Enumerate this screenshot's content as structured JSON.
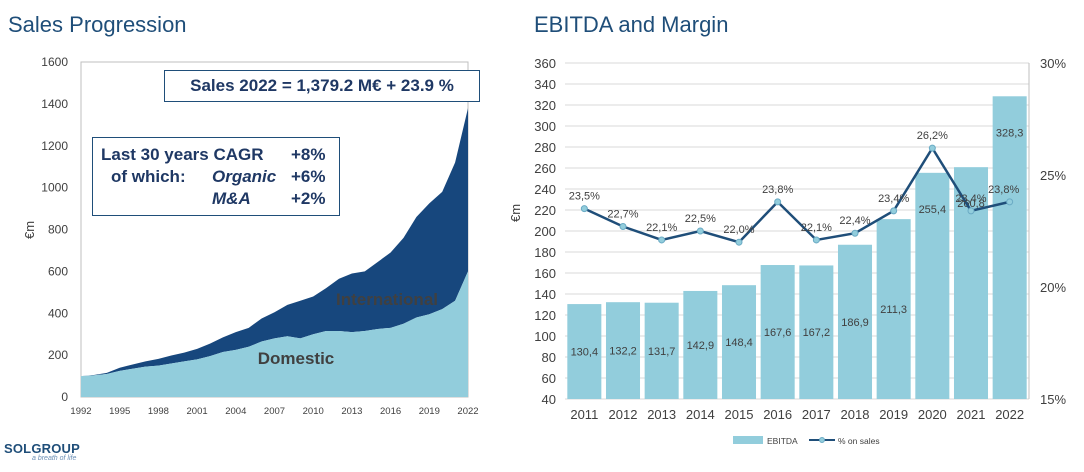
{
  "titles": {
    "left": "Sales Progression",
    "right": "EBITDA and Margin"
  },
  "sales_box": "Sales 2022 = 1,379.2 M€  + 23.9 %",
  "cagr_box": {
    "line1_label": "Last 30 years CAGR",
    "line1_value": "+8%",
    "line2_label": "of which:",
    "line2_sub": "Organic",
    "line2_value": "+6%",
    "line3_sub": "M&A",
    "line3_value": "+2%"
  },
  "area_labels": {
    "international": "International",
    "domestic": "Domestic"
  },
  "logo": {
    "brand": "SOLGROUP",
    "tagline": "a breath of life"
  },
  "colors": {
    "light": "#92cddc",
    "dark": "#17477d",
    "line": "#1f4e79",
    "text": "#1f3864"
  },
  "chart_data": [
    {
      "type": "area",
      "title": "Sales Progression",
      "ylabel": "€m",
      "ylim": [
        0,
        1600
      ],
      "yticks": [
        0,
        200,
        400,
        600,
        800,
        1000,
        1200,
        1400,
        1600
      ],
      "xticklabels": [
        "1992",
        "1995",
        "1998",
        "2001",
        "2004",
        "2007",
        "2010",
        "2013",
        "2016",
        "2019",
        "2022"
      ],
      "x": [
        1992,
        1993,
        1994,
        1995,
        1996,
        1997,
        1998,
        1999,
        2000,
        2001,
        2002,
        2003,
        2004,
        2005,
        2006,
        2007,
        2008,
        2009,
        2010,
        2011,
        2012,
        2013,
        2014,
        2015,
        2016,
        2017,
        2018,
        2019,
        2020,
        2021,
        2022
      ],
      "stacked": true,
      "series": [
        {
          "name": "Domestic",
          "values": [
            100,
            103,
            110,
            125,
            135,
            145,
            150,
            160,
            170,
            180,
            195,
            215,
            225,
            240,
            265,
            280,
            290,
            280,
            300,
            315,
            315,
            310,
            315,
            325,
            330,
            350,
            380,
            395,
            420,
            460,
            600
          ]
        },
        {
          "name": "International",
          "values": [
            0,
            2,
            5,
            15,
            20,
            25,
            32,
            38,
            42,
            50,
            60,
            70,
            85,
            90,
            110,
            125,
            150,
            180,
            180,
            205,
            250,
            280,
            285,
            320,
            360,
            410,
            480,
            530,
            560,
            660,
            780
          ]
        }
      ]
    },
    {
      "type": "bar",
      "title": "EBITDA and Margin",
      "ylabel": "€m",
      "ylim": [
        40,
        360
      ],
      "yticks": [
        40,
        60,
        80,
        100,
        120,
        140,
        160,
        180,
        200,
        220,
        240,
        260,
        280,
        300,
        320,
        340,
        360
      ],
      "y2lim": [
        15,
        30
      ],
      "y2ticks": [
        "15%",
        "20%",
        "25%",
        "30%"
      ],
      "categories": [
        "2011",
        "2012",
        "2013",
        "2014",
        "2015",
        "2016",
        "2017",
        "2018",
        "2019",
        "2020",
        "2021",
        "2022"
      ],
      "series": [
        {
          "name": "EBITDA",
          "values": [
            130.4,
            132.2,
            131.7,
            142.9,
            148.4,
            167.6,
            167.2,
            186.9,
            211.3,
            255.4,
            260.8,
            328.3
          ],
          "labels": [
            "130,4",
            "132,2",
            "131,7",
            "142,9",
            "148,4",
            "167,6",
            "167,2",
            "186,9",
            "211,3",
            "255,4",
            "260,8",
            "328,3"
          ]
        },
        {
          "name": "% on sales",
          "values": [
            23.5,
            22.7,
            22.1,
            22.5,
            22.0,
            23.8,
            22.1,
            22.4,
            23.4,
            26.2,
            23.4,
            23.8
          ],
          "labels": [
            "23,5%",
            "22,7%",
            "22,1%",
            "22,5%",
            "22,0%",
            "23,8%",
            "22,1%",
            "22,4%",
            "23,4%",
            "26,2%",
            "23,4%",
            "23,8%"
          ]
        }
      ],
      "legend": "bottom",
      "grid": true
    }
  ]
}
